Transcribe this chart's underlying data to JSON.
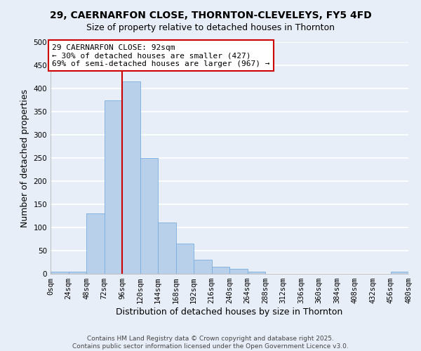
{
  "title": "29, CAERNARFON CLOSE, THORNTON-CLEVELEYS, FY5 4FD",
  "subtitle": "Size of property relative to detached houses in Thornton",
  "xlabel": "Distribution of detached houses by size in Thornton",
  "ylabel": "Number of detached properties",
  "bin_edges": [
    0,
    24,
    48,
    72,
    96,
    120,
    144,
    168,
    192,
    216,
    240,
    264,
    288,
    312,
    336,
    360,
    384,
    408,
    432,
    456,
    480
  ],
  "bar_heights": [
    4,
    5,
    130,
    375,
    415,
    250,
    110,
    65,
    30,
    15,
    10,
    5,
    0,
    0,
    0,
    0,
    0,
    0,
    0,
    5
  ],
  "bar_color": "#b8d0ea",
  "bar_edge_color": "#7aade0",
  "vline_x": 96,
  "vline_color": "#cc0000",
  "annotation_text_line1": "29 CAERNARFON CLOSE: 92sqm",
  "annotation_text_line2": "← 30% of detached houses are smaller (427)",
  "annotation_text_line3": "69% of semi-detached houses are larger (967) →",
  "annotation_box_color": "#ffffff",
  "annotation_box_edge_color": "#cc0000",
  "ylim": [
    0,
    500
  ],
  "yticks": [
    0,
    50,
    100,
    150,
    200,
    250,
    300,
    350,
    400,
    450,
    500
  ],
  "background_color": "#e8eef8",
  "grid_color": "#ffffff",
  "footer_line1": "Contains HM Land Registry data © Crown copyright and database right 2025.",
  "footer_line2": "Contains public sector information licensed under the Open Government Licence v3.0.",
  "title_fontsize": 10,
  "subtitle_fontsize": 9,
  "axis_label_fontsize": 9,
  "tick_fontsize": 7.5,
  "annotation_fontsize": 8,
  "footer_fontsize": 6.5
}
